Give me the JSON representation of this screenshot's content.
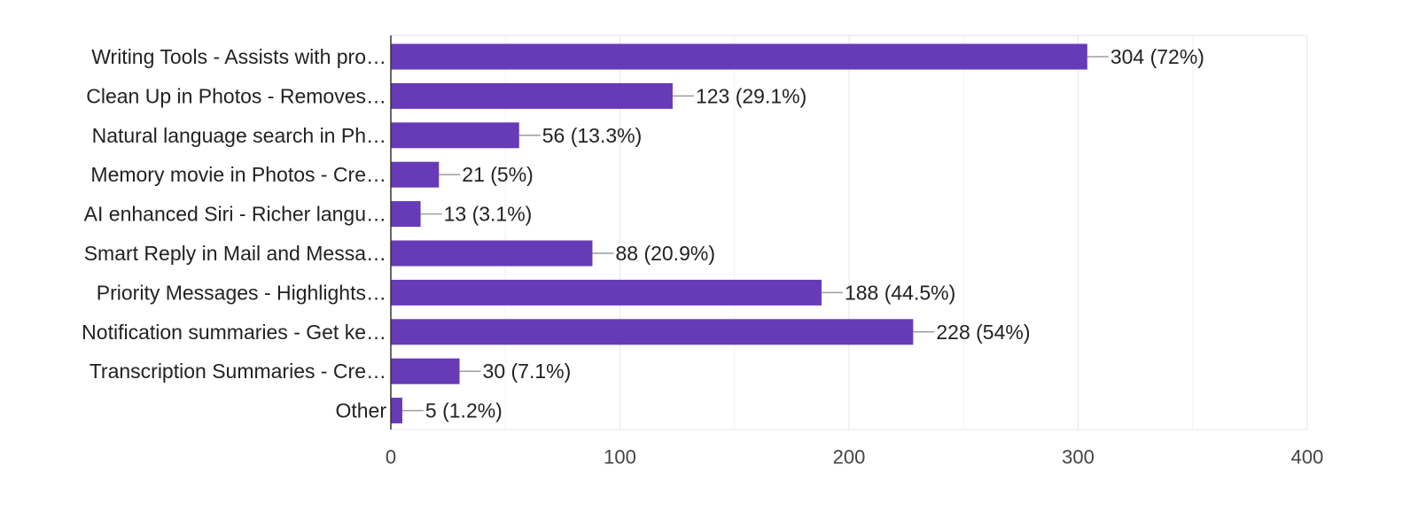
{
  "chart_data": {
    "type": "bar",
    "orientation": "horizontal",
    "categories": [
      "Writing Tools - Assists with pro…",
      "Clean Up in Photos - Removes…",
      "Natural language search in Ph…",
      "Memory movie in Photos - Cre…",
      "AI enhanced Siri - Richer langu…",
      "Smart Reply in Mail and Messa…",
      "Priority Messages - Highlights…",
      "Notification summaries - Get ke…",
      "Transcription Summaries - Cre…",
      "Other"
    ],
    "values": [
      304,
      123,
      56,
      21,
      13,
      88,
      188,
      228,
      30,
      5
    ],
    "data_labels": [
      "304 (72%)",
      "123 (29.1%)",
      "56 (13.3%)",
      "21 (5%)",
      "13 (3.1%)",
      "88 (20.9%)",
      "188 (44.5%)",
      "228 (54%)",
      "30 (7.1%)",
      "5 (1.2%)"
    ],
    "xlim": [
      0,
      400
    ],
    "xticks": [
      0,
      100,
      200,
      300,
      400
    ],
    "xtick_labels": [
      "0",
      "100",
      "200",
      "300",
      "400"
    ],
    "grid": true,
    "title": "",
    "xlabel": "",
    "ylabel": "",
    "colors": {
      "bar": "#673ab7",
      "grid": "#e6e6e6",
      "axis": "#333333",
      "leader": "#9e9e9e"
    }
  }
}
